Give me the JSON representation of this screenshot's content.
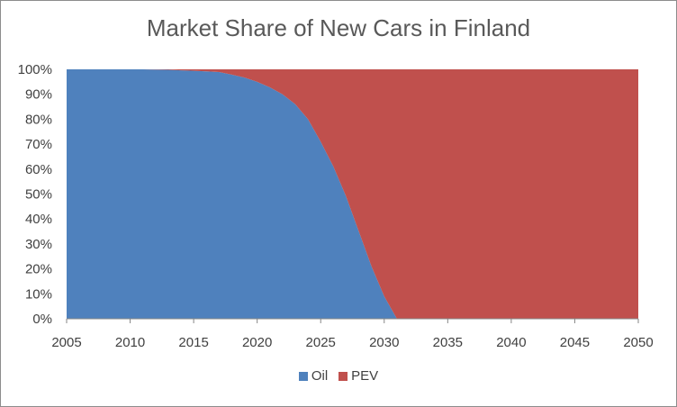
{
  "chart_data": {
    "type": "area",
    "stacked": true,
    "title": "Market Share of New Cars in Finland",
    "xlabel": "",
    "ylabel": "",
    "x": [
      2005,
      2006,
      2007,
      2008,
      2009,
      2010,
      2011,
      2012,
      2013,
      2014,
      2015,
      2016,
      2017,
      2018,
      2019,
      2020,
      2021,
      2022,
      2023,
      2024,
      2025,
      2026,
      2027,
      2028,
      2029,
      2030,
      2031,
      2032,
      2033,
      2034,
      2035,
      2036,
      2037,
      2038,
      2039,
      2040,
      2041,
      2042,
      2043,
      2044,
      2045,
      2046,
      2047,
      2048,
      2049,
      2050
    ],
    "series": [
      {
        "name": "Oil",
        "color": "#4f81bd",
        "values": [
          100,
          100,
          100,
          100,
          100,
          100,
          100,
          99.9,
          99.8,
          99.6,
          99.4,
          99.2,
          98.9,
          97.9,
          96.7,
          95.0,
          92.8,
          90.0,
          86.0,
          80.0,
          71.0,
          61.0,
          49.0,
          35.0,
          21.0,
          9.0,
          0,
          0,
          0,
          0,
          0,
          0,
          0,
          0,
          0,
          0,
          0,
          0,
          0,
          0,
          0,
          0,
          0,
          0,
          0,
          0
        ]
      },
      {
        "name": "PEV",
        "color": "#c0504d",
        "values": [
          0,
          0,
          0,
          0,
          0,
          0,
          0,
          0.1,
          0.2,
          0.4,
          0.6,
          0.8,
          1.1,
          2.1,
          3.3,
          5.0,
          7.2,
          10.0,
          14.0,
          20.0,
          29.0,
          39.0,
          51.0,
          65.0,
          79.0,
          91.0,
          100,
          100,
          100,
          100,
          100,
          100,
          100,
          100,
          100,
          100,
          100,
          100,
          100,
          100,
          100,
          100,
          100,
          100,
          100,
          100
        ]
      }
    ],
    "xlim": [
      2005,
      2050
    ],
    "ylim": [
      0,
      100
    ],
    "xticks": [
      "2005",
      "2010",
      "2015",
      "2020",
      "2025",
      "2030",
      "2035",
      "2040",
      "2045",
      "2050"
    ],
    "yticks": [
      "0%",
      "10%",
      "20%",
      "30%",
      "40%",
      "50%",
      "60%",
      "70%",
      "80%",
      "90%",
      "100%"
    ],
    "grid": false,
    "legend": "bottom"
  }
}
